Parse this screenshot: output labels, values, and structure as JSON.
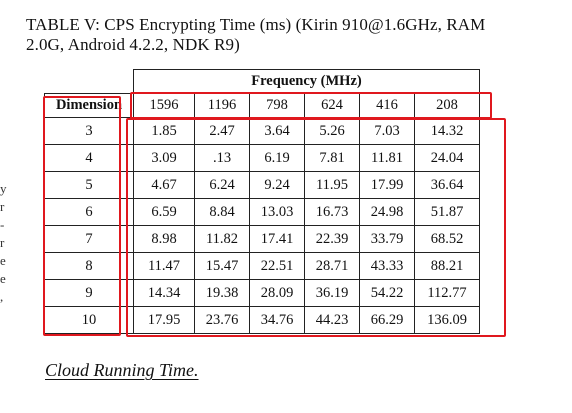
{
  "caption": {
    "line1": "TABLE V: CPS Encrypting Time (ms) (Kirin 910@1.6GHz, RAM",
    "line2": "2.0G, Android 4.2.2, NDK R9)"
  },
  "margin_marks": [
    "y",
    "r",
    "-",
    "r",
    "e",
    "e",
    ","
  ],
  "table": {
    "group_header": "Frequency (MHz)",
    "row_header": "Dimension",
    "frequencies": [
      "1596",
      "1196",
      "798",
      "624",
      "416",
      "208"
    ],
    "rows": [
      {
        "dimension": "3",
        "values": [
          "1.85",
          "2.47",
          "3.64",
          "5.26",
          "7.03",
          "14.32"
        ]
      },
      {
        "dimension": "4",
        "values": [
          "3.09",
          ".13",
          "6.19",
          "7.81",
          "11.81",
          "24.04"
        ]
      },
      {
        "dimension": "5",
        "values": [
          "4.67",
          "6.24",
          "9.24",
          "11.95",
          "17.99",
          "36.64"
        ]
      },
      {
        "dimension": "6",
        "values": [
          "6.59",
          "8.84",
          "13.03",
          "16.73",
          "24.98",
          "51.87"
        ]
      },
      {
        "dimension": "7",
        "values": [
          "8.98",
          "11.82",
          "17.41",
          "22.39",
          "33.79",
          "68.52"
        ]
      },
      {
        "dimension": "8",
        "values": [
          "11.47",
          "15.47",
          "22.51",
          "28.71",
          "43.33",
          "88.21"
        ]
      },
      {
        "dimension": "9",
        "values": [
          "14.34",
          "19.38",
          "28.09",
          "36.19",
          "54.22",
          "112.77"
        ]
      },
      {
        "dimension": "10",
        "values": [
          "17.95",
          "23.76",
          "34.76",
          "44.23",
          "66.29",
          "136.09"
        ]
      }
    ]
  },
  "highlight_color": "#e0181e",
  "section_heading": "Cloud Running Time."
}
